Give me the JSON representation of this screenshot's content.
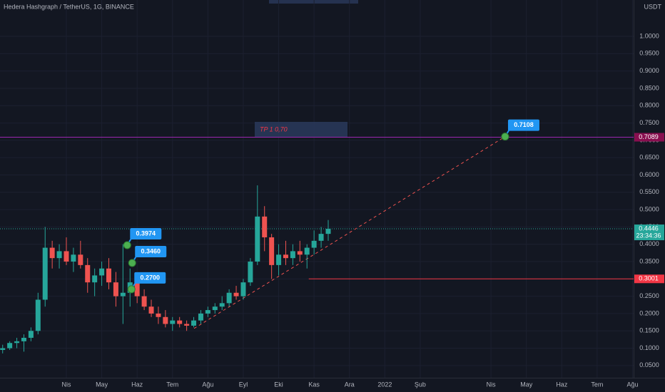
{
  "chart_data": {
    "type": "candlestick",
    "title": "Hedera Hashgraph / TetherUS, 1G, BINANCE",
    "currency": "USDT",
    "up_color": "#26a69a",
    "down_color": "#ef5350",
    "xlim": [
      -0.875,
      17.03
    ],
    "ylim": [
      0.025,
      1.105
    ],
    "grid": true,
    "xticks": [
      {
        "value": 1,
        "label": "Nis"
      },
      {
        "value": 2,
        "label": "May"
      },
      {
        "value": 3,
        "label": "Haz"
      },
      {
        "value": 4,
        "label": "Tem"
      },
      {
        "value": 5,
        "label": "Ağu"
      },
      {
        "value": 6,
        "label": "Eyl"
      },
      {
        "value": 7,
        "label": "Eki"
      },
      {
        "value": 8,
        "label": "Kas"
      },
      {
        "value": 9,
        "label": "Ara"
      },
      {
        "value": 10,
        "label": "2022"
      },
      {
        "value": 11,
        "label": "Şub"
      },
      {
        "value": 13,
        "label": "Nis"
      },
      {
        "value": 14,
        "label": "May"
      },
      {
        "value": 15,
        "label": "Haz"
      },
      {
        "value": 16,
        "label": "Tem"
      },
      {
        "value": 17,
        "label": "Ağu"
      }
    ],
    "yticks": [
      {
        "value": 0.05,
        "label": "0.0500"
      },
      {
        "value": 0.1,
        "label": "0.1000"
      },
      {
        "value": 0.15,
        "label": "0.1500"
      },
      {
        "value": 0.2,
        "label": "0.2000"
      },
      {
        "value": 0.25,
        "label": "0.2500"
      },
      {
        "value": 0.3,
        "label": "0.3000"
      },
      {
        "value": 0.35,
        "label": "0.3500"
      },
      {
        "value": 0.4,
        "label": "0.4000"
      },
      {
        "value": 0.45,
        "label": "0.4500"
      },
      {
        "value": 0.5,
        "label": "0.5000"
      },
      {
        "value": 0.55,
        "label": "0.5500"
      },
      {
        "value": 0.6,
        "label": "0.6000"
      },
      {
        "value": 0.65,
        "label": "0.6500"
      },
      {
        "value": 0.7,
        "label": "0.7000"
      },
      {
        "value": 0.75,
        "label": "0.7500"
      },
      {
        "value": 0.8,
        "label": "0.8000"
      },
      {
        "value": 0.85,
        "label": "0.8500"
      },
      {
        "value": 0.9,
        "label": "0.9000"
      },
      {
        "value": 0.95,
        "label": "0.9500"
      },
      {
        "value": 1.0,
        "label": "1.0000"
      }
    ],
    "candles": [
      {
        "x": -0.8,
        "open": 0.095,
        "high": 0.11,
        "low": 0.085,
        "close": 0.1
      },
      {
        "x": -0.6,
        "open": 0.1,
        "high": 0.12,
        "low": 0.095,
        "close": 0.115
      },
      {
        "x": -0.4,
        "open": 0.115,
        "high": 0.13,
        "low": 0.1,
        "close": 0.12
      },
      {
        "x": -0.2,
        "open": 0.12,
        "high": 0.14,
        "low": 0.09,
        "close": 0.13
      },
      {
        "x": 0,
        "open": 0.13,
        "high": 0.16,
        "low": 0.12,
        "close": 0.15
      },
      {
        "x": 0.2,
        "open": 0.15,
        "high": 0.26,
        "low": 0.14,
        "close": 0.24
      },
      {
        "x": 0.4,
        "open": 0.24,
        "high": 0.45,
        "low": 0.22,
        "close": 0.39
      },
      {
        "x": 0.6,
        "open": 0.39,
        "high": 0.41,
        "low": 0.33,
        "close": 0.36
      },
      {
        "x": 0.8,
        "open": 0.36,
        "high": 0.4,
        "low": 0.33,
        "close": 0.38
      },
      {
        "x": 1.0,
        "open": 0.38,
        "high": 0.42,
        "low": 0.34,
        "close": 0.35
      },
      {
        "x": 1.2,
        "open": 0.35,
        "high": 0.39,
        "low": 0.32,
        "close": 0.37
      },
      {
        "x": 1.4,
        "open": 0.37,
        "high": 0.41,
        "low": 0.33,
        "close": 0.34
      },
      {
        "x": 1.6,
        "open": 0.34,
        "high": 0.36,
        "low": 0.26,
        "close": 0.29
      },
      {
        "x": 1.8,
        "open": 0.29,
        "high": 0.33,
        "low": 0.25,
        "close": 0.31
      },
      {
        "x": 2.0,
        "open": 0.31,
        "high": 0.35,
        "low": 0.28,
        "close": 0.33
      },
      {
        "x": 2.2,
        "open": 0.33,
        "high": 0.36,
        "low": 0.27,
        "close": 0.29
      },
      {
        "x": 2.4,
        "open": 0.29,
        "high": 0.32,
        "low": 0.22,
        "close": 0.25
      },
      {
        "x": 2.6,
        "open": 0.25,
        "high": 0.4,
        "low": 0.17,
        "close": 0.26
      },
      {
        "x": 2.8,
        "open": 0.26,
        "high": 0.33,
        "low": 0.22,
        "close": 0.29
      },
      {
        "x": 3.0,
        "open": 0.29,
        "high": 0.3,
        "low": 0.23,
        "close": 0.25
      },
      {
        "x": 3.2,
        "open": 0.25,
        "high": 0.27,
        "low": 0.21,
        "close": 0.22
      },
      {
        "x": 3.4,
        "open": 0.22,
        "high": 0.24,
        "low": 0.19,
        "close": 0.2
      },
      {
        "x": 3.6,
        "open": 0.2,
        "high": 0.22,
        "low": 0.17,
        "close": 0.19
      },
      {
        "x": 3.8,
        "open": 0.19,
        "high": 0.21,
        "low": 0.16,
        "close": 0.17
      },
      {
        "x": 4.0,
        "open": 0.17,
        "high": 0.19,
        "low": 0.15,
        "close": 0.18
      },
      {
        "x": 4.2,
        "open": 0.18,
        "high": 0.19,
        "low": 0.16,
        "close": 0.17
      },
      {
        "x": 4.4,
        "open": 0.17,
        "high": 0.18,
        "low": 0.15,
        "close": 0.165
      },
      {
        "x": 4.6,
        "open": 0.165,
        "high": 0.19,
        "low": 0.16,
        "close": 0.18
      },
      {
        "x": 4.8,
        "open": 0.18,
        "high": 0.21,
        "low": 0.17,
        "close": 0.2
      },
      {
        "x": 5.0,
        "open": 0.2,
        "high": 0.22,
        "low": 0.19,
        "close": 0.21
      },
      {
        "x": 5.2,
        "open": 0.21,
        "high": 0.23,
        "low": 0.2,
        "close": 0.22
      },
      {
        "x": 5.4,
        "open": 0.22,
        "high": 0.25,
        "low": 0.21,
        "close": 0.23
      },
      {
        "x": 5.6,
        "open": 0.23,
        "high": 0.27,
        "low": 0.22,
        "close": 0.26
      },
      {
        "x": 5.8,
        "open": 0.26,
        "high": 0.28,
        "low": 0.24,
        "close": 0.25
      },
      {
        "x": 6.0,
        "open": 0.25,
        "high": 0.3,
        "low": 0.24,
        "close": 0.29
      },
      {
        "x": 6.2,
        "open": 0.29,
        "high": 0.36,
        "low": 0.28,
        "close": 0.35
      },
      {
        "x": 6.4,
        "open": 0.35,
        "high": 0.57,
        "low": 0.34,
        "close": 0.48
      },
      {
        "x": 6.6,
        "open": 0.48,
        "high": 0.51,
        "low": 0.38,
        "close": 0.42
      },
      {
        "x": 6.8,
        "open": 0.42,
        "high": 0.43,
        "low": 0.3,
        "close": 0.34
      },
      {
        "x": 7.0,
        "open": 0.34,
        "high": 0.4,
        "low": 0.31,
        "close": 0.37
      },
      {
        "x": 7.2,
        "open": 0.37,
        "high": 0.41,
        "low": 0.34,
        "close": 0.36
      },
      {
        "x": 7.4,
        "open": 0.36,
        "high": 0.4,
        "low": 0.34,
        "close": 0.38
      },
      {
        "x": 7.6,
        "open": 0.38,
        "high": 0.41,
        "low": 0.35,
        "close": 0.37
      },
      {
        "x": 7.8,
        "open": 0.37,
        "high": 0.4,
        "low": 0.33,
        "close": 0.39
      },
      {
        "x": 8.0,
        "open": 0.39,
        "high": 0.44,
        "low": 0.37,
        "close": 0.41
      },
      {
        "x": 8.2,
        "open": 0.41,
        "high": 0.45,
        "low": 0.39,
        "close": 0.43
      },
      {
        "x": 8.4,
        "open": 0.43,
        "high": 0.47,
        "low": 0.41,
        "close": 0.4446
      }
    ],
    "price_lines": [
      {
        "value": 0.7089,
        "color": "#9c27b0",
        "box_color": "#880e4f",
        "x_from": null
      },
      {
        "value": 0.4446,
        "color": "#26a69a",
        "box_color": "#26a69a",
        "x_from": null,
        "countdown": "23:34:36"
      },
      {
        "value": 0.3001,
        "color": "#f23645",
        "box_color": "#f23645",
        "x_from": 7.85
      }
    ],
    "trendline": {
      "x": [
        4.61,
        13.4
      ],
      "values": [
        0.157,
        0.7108
      ],
      "color": "#ef5350"
    },
    "callouts": [
      {
        "x": 2.72,
        "value": 0.3974,
        "label": "0.3974"
      },
      {
        "x": 2.86,
        "value": 0.346,
        "label": "0.3460"
      },
      {
        "x": 2.84,
        "value": 0.27,
        "label": "0.2700"
      },
      {
        "x": 13.4,
        "value": 0.7108,
        "label": "0.7108"
      }
    ],
    "note": "TP 1 0,70"
  }
}
